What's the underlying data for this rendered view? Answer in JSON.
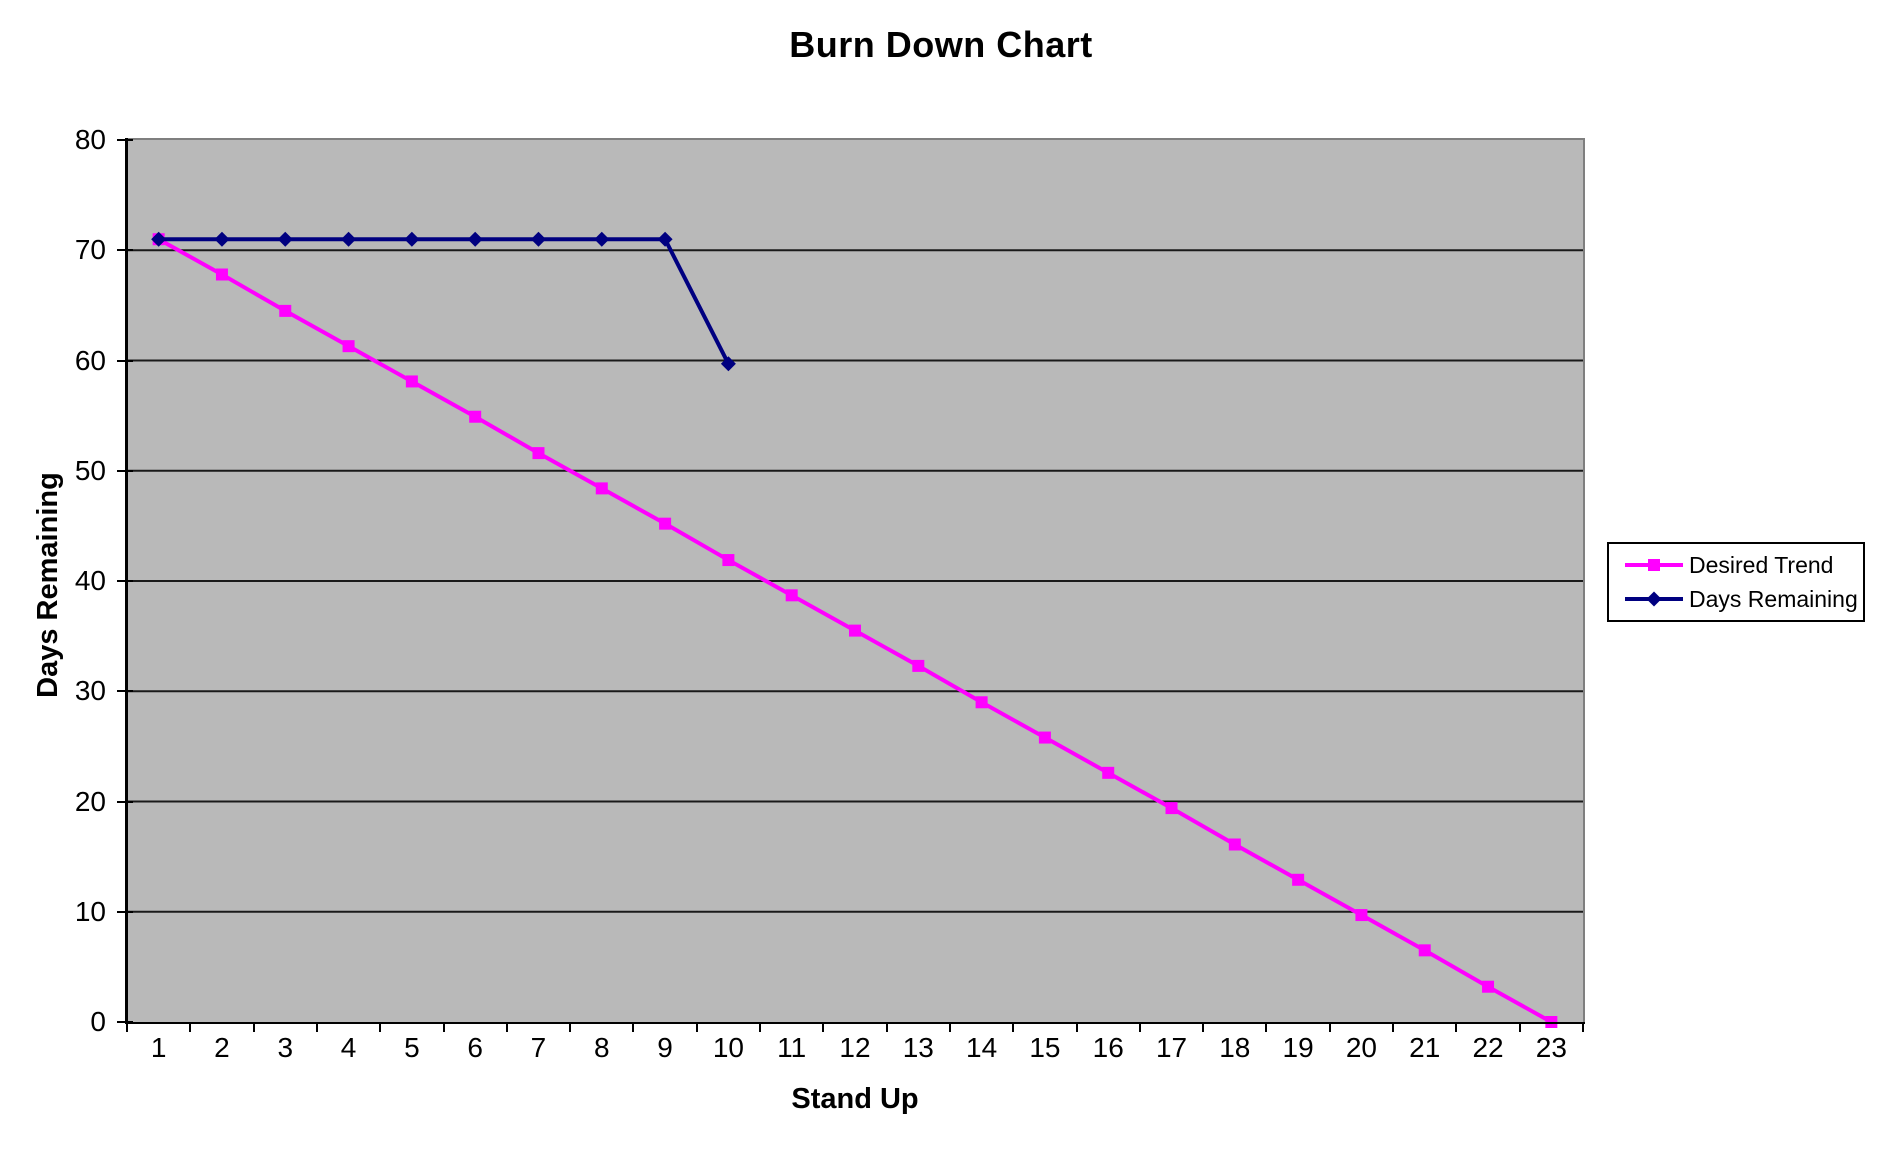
{
  "chart_data": {
    "type": "line",
    "title": "Burn Down Chart",
    "xlabel": "Stand Up",
    "ylabel": "Days Remaining",
    "categories": [
      "1",
      "2",
      "3",
      "4",
      "5",
      "6",
      "7",
      "8",
      "9",
      "10",
      "11",
      "12",
      "13",
      "14",
      "15",
      "16",
      "17",
      "18",
      "19",
      "20",
      "21",
      "22",
      "23"
    ],
    "ylim": [
      0,
      80
    ],
    "ytick_step": 10,
    "grid": "horizontal",
    "legend_position": "right",
    "plot_bg_color": "#B9B9B9",
    "plot_border_color": "#7F7F7F",
    "gridline_color": "#1A1A1A",
    "axis_color": "#000000",
    "series": [
      {
        "name": "Desired Trend",
        "color": "#FF00FF",
        "marker": "square",
        "values": [
          71,
          67.8,
          64.5,
          61.3,
          58.1,
          54.9,
          51.6,
          48.4,
          45.2,
          41.9,
          38.7,
          35.5,
          32.3,
          29.0,
          25.8,
          22.6,
          19.4,
          16.1,
          12.9,
          9.7,
          6.5,
          3.2,
          0
        ]
      },
      {
        "name": "Days Remaining",
        "color": "#000080",
        "marker": "diamond",
        "values": [
          71,
          71,
          71,
          71,
          71,
          71,
          71,
          71,
          71,
          59.7
        ]
      }
    ]
  }
}
